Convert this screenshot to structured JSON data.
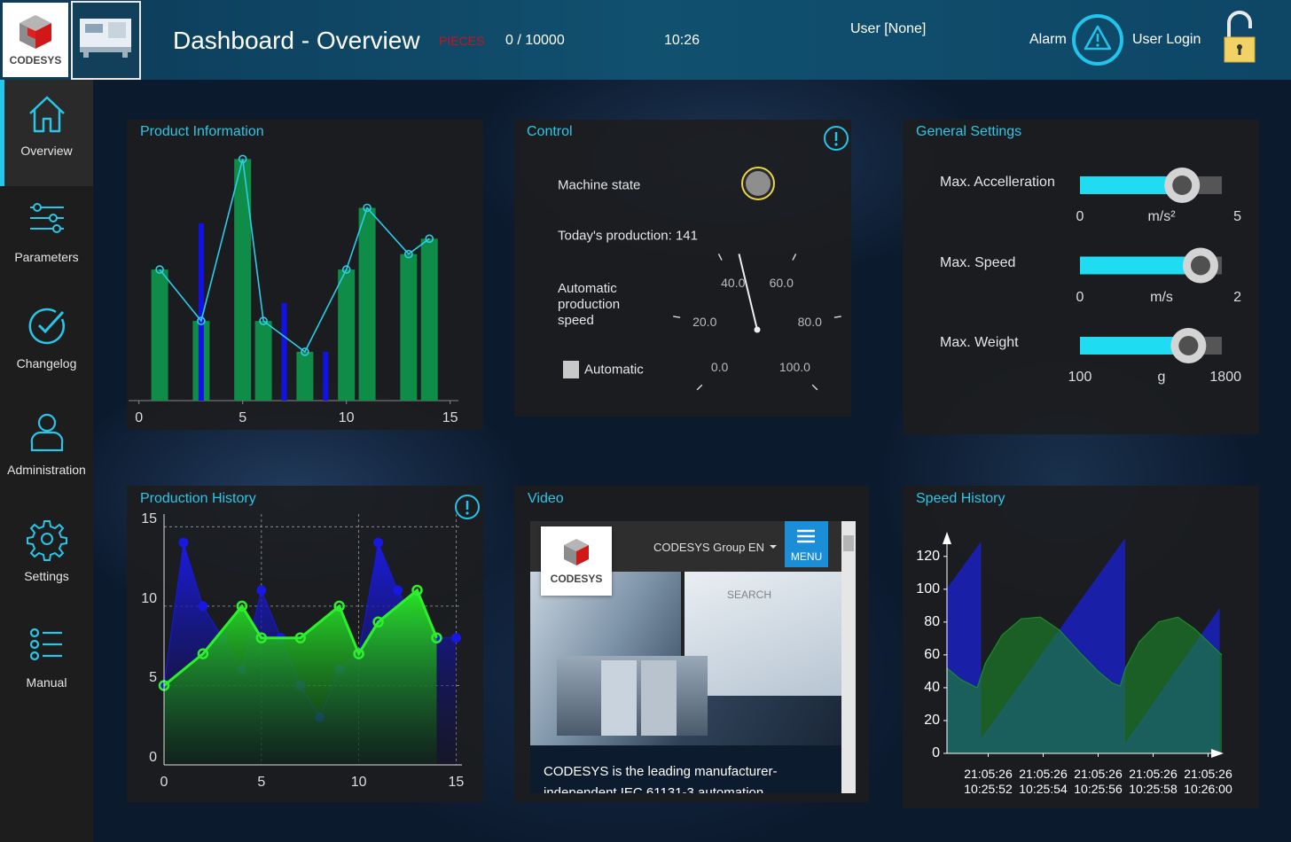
{
  "header": {
    "logo": "CODESYS",
    "title": "Dashboard - Overview",
    "pieces_label": "PIECES",
    "pieces": "0 / 10000",
    "time": "10:26",
    "user": "User [None]",
    "alarm": "Alarm",
    "login": "User Login"
  },
  "nav": [
    "Overview",
    "Parameters",
    "Changelog",
    "Administration",
    "Settings",
    "Manual"
  ],
  "control": {
    "title": "Control",
    "machine_state": "Machine state",
    "production": "Today's production: 141",
    "speed_label": "Automatic production speed",
    "automatic": "Automatic"
  },
  "settings": {
    "title": "General Settings",
    "sliders": [
      {
        "label": "Max. Accelleration",
        "min": 0,
        "max": 5,
        "unit": "m/s²",
        "value": 3.6
      },
      {
        "label": "Max. Speed",
        "min": 0,
        "max": 2,
        "unit": "m/s",
        "value": 1.7
      },
      {
        "label": "Max. Weight",
        "min": 100,
        "max": 1800,
        "unit": "g",
        "value": 1400
      }
    ]
  },
  "video": {
    "title": "Video",
    "logo": "CODESYS",
    "site": "CODESYS Group EN",
    "menu": "MENU",
    "search": "SEARCH",
    "text": "CODESYS is the leading manufacturer-independent IEC 61131-3 automation"
  },
  "chart_data": [
    {
      "type": "bar",
      "title": "Product Information",
      "xlim": [
        -0.5,
        15.4
      ],
      "xticks": [
        0,
        5,
        10,
        15
      ],
      "ylim": [
        0,
        100
      ],
      "series": [
        {
          "type": "bar",
          "color": "#0f8c48",
          "x": [
            1,
            3,
            5,
            6,
            8,
            10,
            11,
            13,
            14
          ],
          "values": [
            51,
            31,
            94,
            31,
            19,
            51,
            75,
            57,
            63
          ]
        },
        {
          "type": "bar",
          "color": "#1212e6",
          "x": [
            3,
            7,
            9
          ],
          "values": [
            69,
            38,
            19
          ]
        },
        {
          "type": "line",
          "color": "#2ccde6",
          "x": [
            1,
            3,
            5,
            6,
            8,
            10,
            11,
            13,
            14
          ],
          "values": [
            51,
            31,
            94,
            31,
            19,
            51,
            75,
            57,
            63
          ]
        }
      ]
    },
    {
      "type": "gauge",
      "value": 45,
      "ylim": [
        0,
        100
      ],
      "yticks": [
        {
          "value": 0,
          "label": "0.0"
        },
        {
          "value": 20,
          "label": "20.0"
        },
        {
          "value": 40,
          "label": "40.0"
        },
        {
          "value": 60,
          "label": "60.0"
        },
        {
          "value": 80,
          "label": "80.0"
        },
        {
          "value": 100,
          "label": "100.0"
        }
      ]
    },
    {
      "type": "area",
      "title": "Production History",
      "xlim": [
        0,
        15.3
      ],
      "xticks": [
        0,
        5,
        10,
        15
      ],
      "ylim": [
        0,
        15.8
      ],
      "yticks": [
        0,
        5,
        10,
        15
      ],
      "grid": true,
      "series": [
        {
          "color": "#1818e0",
          "x": [
            0,
            1,
            2,
            3,
            4,
            5,
            6,
            7,
            8,
            9,
            10,
            11,
            12,
            13,
            14,
            15
          ],
          "values": [
            5,
            14,
            10,
            8,
            6,
            11,
            8,
            5,
            3,
            6,
            7,
            14,
            11,
            9,
            8,
            8
          ]
        },
        {
          "color": "#2cf02c",
          "x": [
            0,
            2,
            4,
            5,
            7,
            9,
            10,
            11,
            13,
            14
          ],
          "values": [
            5,
            7,
            10,
            8,
            8,
            10,
            7,
            9,
            11,
            8
          ]
        }
      ]
    },
    {
      "type": "area",
      "title": "Speed History",
      "xlim": [
        50.5,
        60.5
      ],
      "xticks": [
        {
          "value": 52,
          "label": "21:05:26\n10:25:52"
        },
        {
          "value": 54,
          "label": "21:05:26\n10:25:54"
        },
        {
          "value": 56,
          "label": "21:05:26\n10:25:56"
        },
        {
          "value": 58,
          "label": "21:05:26\n10:25:58"
        },
        {
          "value": 60,
          "label": "21:05:26\n10:26:00"
        }
      ],
      "ylim": [
        0,
        135
      ],
      "yticks": [
        0,
        20,
        40,
        60,
        80,
        100,
        120
      ],
      "series": [
        {
          "color": "#1a20b0",
          "x": [
            50.5,
            51.72,
            51.72,
            56.96,
            56.96,
            60.42
          ],
          "values": [
            100,
            128,
            8,
            130,
            5,
            88
          ]
        },
        {
          "color": "#1c8a2c",
          "x": [
            50.5,
            51.0,
            51.6,
            51.9,
            52.5,
            53.2,
            53.9,
            54.6,
            55.3,
            56.0,
            56.5,
            56.8,
            57.0,
            57.5,
            58.2,
            58.9,
            59.5,
            60.0,
            60.5
          ],
          "values": [
            52,
            45,
            40,
            55,
            72,
            82,
            83,
            75,
            62,
            50,
            43,
            41,
            52,
            68,
            80,
            83,
            76,
            68,
            60
          ]
        }
      ]
    }
  ]
}
